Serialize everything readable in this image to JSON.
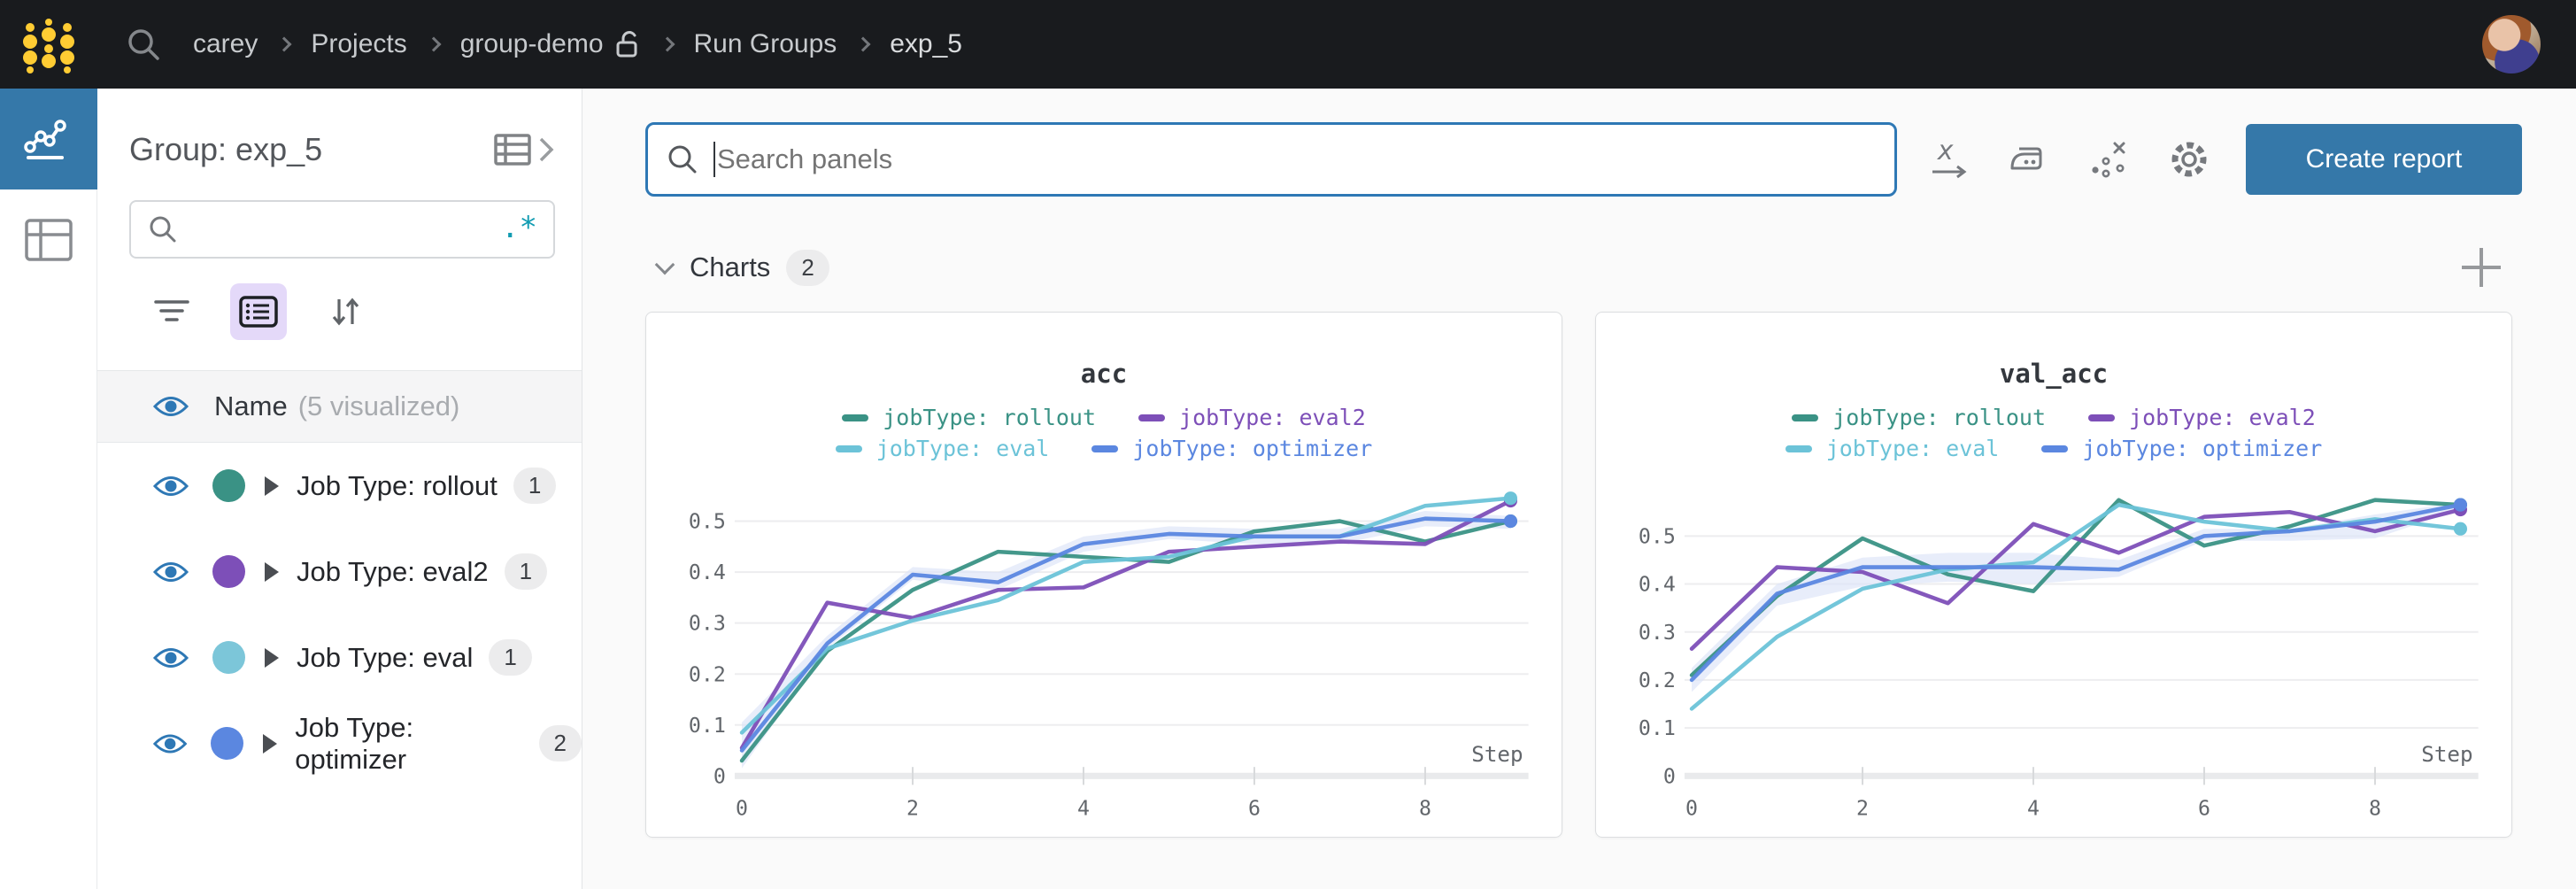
{
  "topbar": {
    "breadcrumb": [
      "carey",
      "Projects",
      "group-demo",
      "Run Groups",
      "exp_5"
    ]
  },
  "sidebar": {
    "title": "Group: exp_5",
    "search_value": "",
    "name_header": "Name",
    "name_note": "(5 visualized)",
    "groups": [
      {
        "label": "Job Type: rollout",
        "count": "1",
        "color": "#3a9285"
      },
      {
        "label": "Job Type: eval2",
        "count": "1",
        "color": "#7d4fb8"
      },
      {
        "label": "Job Type: eval",
        "count": "1",
        "color": "#7cc6d9"
      },
      {
        "label": "Job Type: optimizer",
        "count": "2",
        "color": "#5b87e0"
      }
    ]
  },
  "main": {
    "search": {
      "placeholder": "Search panels",
      "value": ""
    },
    "create_report_label": "Create report",
    "section_label": "Charts",
    "section_count": "2"
  },
  "chart_data": [
    {
      "type": "line",
      "title": "acc",
      "xlabel": "Step",
      "x": [
        0,
        1,
        2,
        3,
        4,
        5,
        6,
        7,
        8,
        9
      ],
      "xticks": [
        0,
        2,
        4,
        6,
        8
      ],
      "yticks": [
        0,
        0.1,
        0.2,
        0.3,
        0.4,
        0.5
      ],
      "ylim": [
        0,
        0.565
      ],
      "series": [
        {
          "name": "jobType: rollout",
          "color": "#3a9285",
          "values": [
            0.03,
            0.245,
            0.365,
            0.44,
            0.43,
            0.42,
            0.48,
            0.5,
            0.46,
            0.5
          ]
        },
        {
          "name": "jobType: eval2",
          "color": "#7d4fb8",
          "values": [
            0.055,
            0.34,
            0.31,
            0.365,
            0.37,
            0.44,
            0.45,
            0.46,
            0.455,
            0.54
          ]
        },
        {
          "name": "jobType: eval",
          "color": "#6cc3d8",
          "values": [
            0.085,
            0.25,
            0.305,
            0.345,
            0.42,
            0.43,
            0.47,
            0.47,
            0.53,
            0.545
          ]
        },
        {
          "name": "jobType: optimizer",
          "color": "#5b87e0",
          "values": [
            0.05,
            0.26,
            0.395,
            0.38,
            0.455,
            0.475,
            0.47,
            0.47,
            0.505,
            0.5
          ]
        }
      ],
      "band": {
        "series": "jobType: optimizer",
        "color": "#dbe3f7",
        "upper": [
          0.105,
          0.275,
          0.41,
          0.4,
          0.47,
          0.49,
          0.485,
          0.485,
          0.52,
          0.51
        ],
        "lower": [
          0.015,
          0.25,
          0.385,
          0.365,
          0.44,
          0.465,
          0.455,
          0.455,
          0.49,
          0.485
        ]
      }
    },
    {
      "type": "line",
      "title": "val_acc",
      "xlabel": "Step",
      "x": [
        0,
        1,
        2,
        3,
        4,
        5,
        6,
        7,
        8,
        9
      ],
      "xticks": [
        0,
        2,
        4,
        6,
        8
      ],
      "yticks": [
        0,
        0.1,
        0.2,
        0.3,
        0.4,
        0.5
      ],
      "ylim": [
        0,
        0.6
      ],
      "series": [
        {
          "name": "jobType: rollout",
          "color": "#3a9285",
          "values": [
            0.21,
            0.375,
            0.495,
            0.42,
            0.385,
            0.575,
            0.48,
            0.52,
            0.575,
            0.565
          ]
        },
        {
          "name": "jobType: eval2",
          "color": "#7d4fb8",
          "values": [
            0.265,
            0.435,
            0.425,
            0.36,
            0.525,
            0.465,
            0.54,
            0.55,
            0.51,
            0.555
          ]
        },
        {
          "name": "jobType: eval",
          "color": "#6cc3d8",
          "values": [
            0.14,
            0.29,
            0.39,
            0.43,
            0.445,
            0.565,
            0.53,
            0.51,
            0.535,
            0.515
          ]
        },
        {
          "name": "jobType: optimizer",
          "color": "#5b87e0",
          "values": [
            0.2,
            0.38,
            0.435,
            0.435,
            0.435,
            0.43,
            0.5,
            0.51,
            0.53,
            0.565
          ]
        }
      ],
      "band": {
        "series": "jobType: optimizer",
        "color": "#dbe3f7",
        "upper": [
          0.225,
          0.4,
          0.455,
          0.465,
          0.465,
          0.45,
          0.515,
          0.515,
          0.545,
          0.57
        ],
        "lower": [
          0.175,
          0.355,
          0.395,
          0.405,
          0.4,
          0.415,
          0.49,
          0.49,
          0.495,
          0.555
        ]
      }
    }
  ]
}
